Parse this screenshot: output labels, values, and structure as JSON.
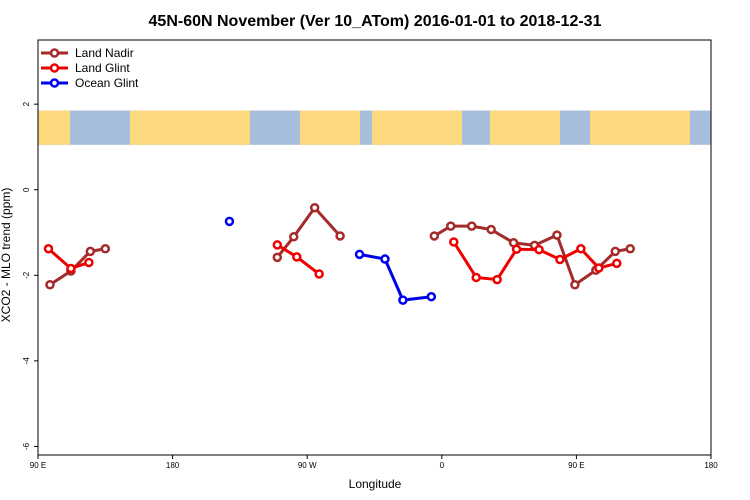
{
  "chart_data": {
    "type": "line",
    "title": "45N-60N November (Ver 10_ATom)   2016-01-01 to 2018-12-31",
    "xlabel": "Longitude",
    "ylabel": "XCO2 - MLO trend (ppm)",
    "xlim": [
      90,
      450
    ],
    "ylim": [
      -6.2,
      3.5
    ],
    "x_ticks": [
      {
        "value": 90,
        "label": "90 E"
      },
      {
        "value": 180,
        "label": "180"
      },
      {
        "value": 270,
        "label": "90 W"
      },
      {
        "value": 360,
        "label": "0"
      },
      {
        "value": 450,
        "label": "90 E"
      },
      {
        "value": 540,
        "label": "180"
      }
    ],
    "y_ticks": [
      {
        "value": 2,
        "label": "2"
      },
      {
        "value": 0,
        "label": "0"
      },
      {
        "value": -2,
        "label": "-2"
      },
      {
        "value": -4,
        "label": "-4"
      },
      {
        "value": -6,
        "label": "-6"
      }
    ],
    "legend_position": "top-left",
    "map_strip": {
      "y_top": 1.85,
      "y_bottom": 1.05,
      "land_color": "#fdd97d",
      "ocean_color": "#a6bedc"
    },
    "series": [
      {
        "name": "Land Nadir",
        "color": "#a52a2a",
        "segments": [
          [
            [
              98,
              -2.22
            ],
            [
              112,
              -1.9
            ],
            [
              125,
              -1.44
            ],
            [
              135,
              -1.38
            ]
          ],
          [
            [
              250,
              -1.58
            ],
            [
              261,
              -1.1
            ],
            [
              275,
              -0.42
            ],
            [
              292,
              -1.08
            ]
          ],
          [
            [
              355,
              -1.08
            ],
            [
              366,
              -0.85
            ],
            [
              380,
              -0.85
            ],
            [
              393,
              -0.93
            ],
            [
              408,
              -1.24
            ],
            [
              422,
              -1.3
            ],
            [
              437,
              -1.06
            ],
            [
              449,
              -2.22
            ],
            [
              463,
              -1.88
            ],
            [
              476,
              -1.44
            ],
            [
              486,
              -1.38
            ]
          ]
        ]
      },
      {
        "name": "Land Glint",
        "color": "#ee0000",
        "segments": [
          [
            [
              97,
              -1.38
            ],
            [
              112,
              -1.84
            ],
            [
              124,
              -1.7
            ]
          ],
          [
            [
              250,
              -1.29
            ],
            [
              263,
              -1.57
            ],
            [
              278,
              -1.97
            ]
          ],
          [
            [
              368,
              -1.22
            ],
            [
              383,
              -2.05
            ],
            [
              397,
              -2.1
            ],
            [
              410,
              -1.39
            ],
            [
              425,
              -1.4
            ],
            [
              439,
              -1.63
            ],
            [
              453,
              -1.38
            ],
            [
              465,
              -1.83
            ],
            [
              477,
              -1.72
            ]
          ]
        ]
      },
      {
        "name": "Ocean Glint",
        "color": "#0000ee",
        "segments": [
          [
            [
              218,
              -0.74
            ]
          ],
          [
            [
              305,
              -1.51
            ],
            [
              322,
              -1.62
            ],
            [
              334,
              -2.58
            ],
            [
              353,
              -2.5
            ]
          ]
        ]
      }
    ]
  }
}
